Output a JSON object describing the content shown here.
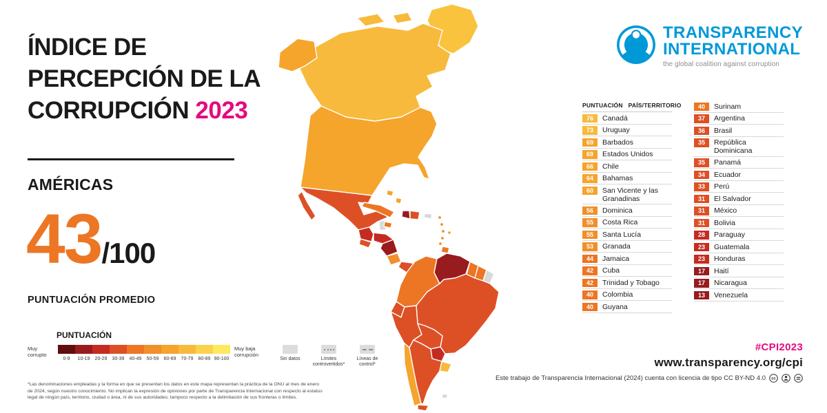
{
  "title": {
    "line1": "ÍNDICE DE",
    "line2": "PERCEPCIÓN DE LA",
    "line3": "CORRUPCIÓN",
    "year": "2023"
  },
  "region": {
    "name": "AMÉRICAS",
    "score": "43",
    "denominator": "/100",
    "caption": "PUNTUACIÓN PROMEDIO"
  },
  "legend": {
    "title": "PUNTUACIÓN",
    "low_label": "Muy corrupto",
    "high_label": "Muy baja corrupción",
    "buckets": [
      {
        "label": "0-9",
        "color": "#5f0e10"
      },
      {
        "label": "10-19",
        "color": "#981b1e"
      },
      {
        "label": "20-29",
        "color": "#c52b20"
      },
      {
        "label": "30-39",
        "color": "#dd5026"
      },
      {
        "label": "40-49",
        "color": "#ec7624"
      },
      {
        "label": "50-59",
        "color": "#f18f2a"
      },
      {
        "label": "60-69",
        "color": "#f5a42c"
      },
      {
        "label": "70-79",
        "color": "#f8ba3c"
      },
      {
        "label": "80-89",
        "color": "#fbd24a"
      },
      {
        "label": "90-100",
        "color": "#fee95c"
      }
    ],
    "no_data_label": "Sin datos",
    "disputed_label": "Límites controvertidos*",
    "control_label": "Líneas de control*",
    "footnote": "*Las denominaciones empleadas y la forma en que se presentan los datos en este mapa representan la práctica de la ONU al mes de enero de 2024, según nuestro conocimiento. No implican la expresión de opiniones por parte de Transparencia Internacional con respecto al estatus legal de ningún país, territorio, ciudad o área, ni de sus autoridades; tampoco respecto a la delimitación de sus fronteras o límites."
  },
  "table": {
    "header_score": "PUNTUACIÓN",
    "header_country": "PAÍS/TERRITORIO",
    "col1": [
      {
        "score": 76,
        "name": "Canadá"
      },
      {
        "score": 73,
        "name": "Uruguay"
      },
      {
        "score": 69,
        "name": "Barbados"
      },
      {
        "score": 69,
        "name": "Estados Unidos"
      },
      {
        "score": 66,
        "name": "Chile"
      },
      {
        "score": 64,
        "name": "Bahamas"
      },
      {
        "score": 60,
        "name": "San Vicente y las Granadinas"
      },
      {
        "score": 56,
        "name": "Dominica"
      },
      {
        "score": 55,
        "name": "Costa Rica"
      },
      {
        "score": 55,
        "name": "Santa Lucía"
      },
      {
        "score": 53,
        "name": "Granada"
      },
      {
        "score": 44,
        "name": "Jamaica"
      },
      {
        "score": 42,
        "name": "Cuba"
      },
      {
        "score": 42,
        "name": "Trinidad y Tobago"
      },
      {
        "score": 40,
        "name": "Colombia"
      },
      {
        "score": 40,
        "name": "Guyana"
      }
    ],
    "col2": [
      {
        "score": 40,
        "name": "Surinam"
      },
      {
        "score": 37,
        "name": "Argentina"
      },
      {
        "score": 36,
        "name": "Brasil"
      },
      {
        "score": 35,
        "name": "República Dominicana"
      },
      {
        "score": 35,
        "name": "Panamá"
      },
      {
        "score": 34,
        "name": "Ecuador"
      },
      {
        "score": 33,
        "name": "Perú"
      },
      {
        "score": 31,
        "name": "El Salvador"
      },
      {
        "score": 31,
        "name": "México"
      },
      {
        "score": 31,
        "name": "Bolivia"
      },
      {
        "score": 28,
        "name": "Paraguay"
      },
      {
        "score": 23,
        "name": "Guatemala"
      },
      {
        "score": 23,
        "name": "Honduras"
      },
      {
        "score": 17,
        "name": "Haití"
      },
      {
        "score": 17,
        "name": "Nicaragua"
      },
      {
        "score": 13,
        "name": "Venezuela"
      }
    ]
  },
  "logo": {
    "line1": "TRANSPARENCY",
    "line2": "INTERNATIONAL",
    "tagline": "the global coalition against corruption"
  },
  "footer": {
    "hashtag": "#CPI2023",
    "url": "www.transparency.org/cpi",
    "license": "Este trabajo de Transparencia Internacional (2024) cuenta con licencia de tipo CC BY-ND 4.0"
  },
  "colors": {
    "accent_pink": "#e5097f",
    "score_orange": "#ec7624",
    "ti_blue": "#0099d8",
    "no_data": "#d9d9d9"
  },
  "map_fills": {
    "greenland": "#fac33e",
    "canada": "#f8ba3c",
    "alaska": "#f5a42c",
    "usa": "#f5a42c",
    "mexico": "#dd5026",
    "belize": "#d9d9d9",
    "guatemala": "#c52b20",
    "honduras": "#c52b20",
    "el_salvador": "#dd5026",
    "nicaragua": "#981b1e",
    "costa_rica": "#f18f2a",
    "panama": "#dd5026",
    "cuba": "#ec7624",
    "jamaica": "#ec7624",
    "haiti": "#981b1e",
    "dominican_republic": "#dd5026",
    "puerto_rico": "#d9d9d9",
    "bahamas": "#f5a42c",
    "lesser_antilles": "#f18f2a",
    "barbados": "#f5a42c",
    "trinidad": "#ec7624",
    "colombia": "#ec7624",
    "venezuela": "#981b1e",
    "guyana": "#ec7624",
    "suriname": "#ec7624",
    "french_guiana": "#d9d9d9",
    "ecuador": "#dd5026",
    "peru": "#dd5026",
    "brazil": "#dd5026",
    "bolivia": "#dd5026",
    "paraguay": "#c52b20",
    "chile": "#f5a42c",
    "argentina": "#dd5026",
    "uruguay": "#f8ba3c",
    "falkland": "#d9d9d9"
  }
}
